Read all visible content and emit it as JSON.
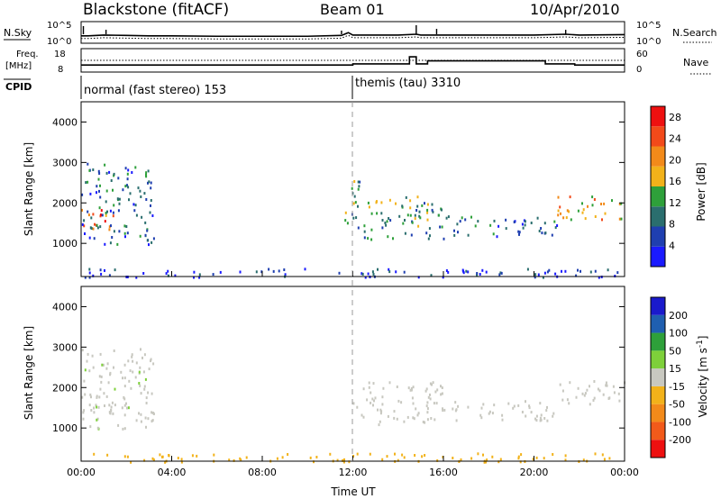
{
  "header": {
    "station": "Blackstone (fitACF)",
    "beam": "Beam 01",
    "date": "10/Apr/2010"
  },
  "noise_panel": {
    "left_label": "N.Sky",
    "right_label": "N.Search",
    "left_ticks": [
      "10^5",
      "10^0"
    ],
    "right_ticks": [
      "10^5",
      "10^0"
    ]
  },
  "freq_panel": {
    "left_label_1": "Freq.",
    "left_label_2": "[MHz]",
    "right_label": "Nave",
    "left_ticks": [
      "18",
      "8"
    ],
    "right_ticks": [
      "60",
      "0"
    ]
  },
  "cpid_panel": {
    "label": "CPID",
    "segments": [
      {
        "text": "normal (fast stereo) 153",
        "start_hour": 0
      },
      {
        "text": "themis (tau) 3310",
        "start_hour": 12
      }
    ]
  },
  "x_axis": {
    "label": "Time UT",
    "ticks": [
      "00:00",
      "04:00",
      "08:00",
      "12:00",
      "16:00",
      "20:00",
      "00:00"
    ]
  },
  "colors": {
    "power_scale": [
      "#1a1aff",
      "#1f3fb0",
      "#2a6e6e",
      "#2ea03a",
      "#f2b21a",
      "#f28a1a",
      "#f24a1a",
      "#ee1010"
    ],
    "velocity_scale": [
      "#ee1010",
      "#f25a1a",
      "#f28a1a",
      "#f2b21a",
      "#c8c8c0",
      "#7ed03a",
      "#2ea03a",
      "#1f5fb0",
      "#1a1acc"
    ]
  },
  "chart_data": [
    {
      "type": "line",
      "title": "",
      "ylabel": "N.Sky",
      "x_range": [
        0,
        24
      ],
      "series": [
        {
          "x": [
            0,
            0.3,
            1,
            2,
            3,
            4,
            6,
            8,
            10,
            11.5,
            11.8,
            12,
            14,
            14.8,
            15,
            16,
            18,
            20,
            21.4,
            22,
            24
          ],
          "values": [
            0.8,
            0.8,
            0.9,
            0.85,
            0.8,
            0.8,
            0.75,
            0.75,
            0.75,
            0.85,
            1.2,
            0.9,
            0.9,
            1.0,
            0.9,
            0.9,
            0.9,
            0.9,
            1.0,
            0.9,
            0.95
          ]
        }
      ]
    },
    {
      "type": "line",
      "title": "",
      "ylabel": "Freq. [MHz]",
      "ylim": [
        8,
        18
      ],
      "x_range": [
        0,
        24
      ],
      "series": [
        {
          "x": [
            0,
            12,
            12,
            14.5,
            14.5,
            14.8,
            14.8,
            15.3,
            15.3,
            20.5,
            20.5,
            21.8,
            21.8,
            24
          ],
          "values": [
            11.0,
            11.0,
            11.5,
            11.5,
            14.5,
            14.5,
            11.5,
            11.5,
            12.8,
            12.8,
            11.5,
            11.5,
            11.0,
            11.0
          ]
        }
      ]
    },
    {
      "type": "heatmap",
      "title": "",
      "xlabel": "Time UT",
      "ylabel": "Slant Range [km]",
      "x_range_hours": [
        0,
        24
      ],
      "ylim": [
        180,
        4500
      ],
      "y_ticks": [
        1000,
        2000,
        3000,
        4000
      ],
      "colorbar": {
        "label": "Power [dB]",
        "ticks": [
          4,
          8,
          12,
          16,
          20,
          24,
          28
        ],
        "range": [
          0,
          30
        ]
      },
      "echo_regions": [
        {
          "t0": 0,
          "t1": 1.5,
          "r0": 1300,
          "r1": 1900,
          "value": 22
        },
        {
          "t0": 0,
          "t1": 3.2,
          "r0": 1000,
          "r1": 3000,
          "value": 8
        },
        {
          "t0": 11.6,
          "t1": 12.3,
          "r0": 1500,
          "r1": 2600,
          "value": 12
        },
        {
          "t0": 12,
          "t1": 16,
          "r0": 1100,
          "r1": 2200,
          "value": 12
        },
        {
          "t0": 16,
          "t1": 21,
          "r0": 1200,
          "r1": 1700,
          "value": 8
        },
        {
          "t0": 21,
          "t1": 24,
          "r0": 1600,
          "r1": 2200,
          "value": 18
        },
        {
          "t0": 0,
          "t1": 24,
          "r0": 180,
          "r1": 400,
          "value": 4
        }
      ]
    },
    {
      "type": "heatmap",
      "title": "",
      "xlabel": "Time UT",
      "ylabel": "Slant Range [km]",
      "x_range_hours": [
        0,
        24
      ],
      "ylim": [
        180,
        4500
      ],
      "y_ticks": [
        1000,
        2000,
        3000,
        4000
      ],
      "colorbar": {
        "label": "Velocity [m s^-1]",
        "ticks": [
          200,
          100,
          50,
          15,
          -15,
          -50,
          -100,
          -200
        ]
      },
      "echo_regions": [
        {
          "t0": 0,
          "t1": 1.5,
          "r0": 1400,
          "r1": 1800,
          "value": 0
        },
        {
          "t0": 0,
          "t1": 3.2,
          "r0": 1000,
          "r1": 3000,
          "value": 10
        },
        {
          "t0": 12,
          "t1": 16,
          "r0": 1100,
          "r1": 2200,
          "value": 0
        },
        {
          "t0": 16,
          "t1": 21,
          "r0": 1200,
          "r1": 1700,
          "value": 5
        },
        {
          "t0": 21,
          "t1": 24,
          "r0": 1600,
          "r1": 2200,
          "value": 0
        },
        {
          "t0": 0,
          "t1": 24,
          "r0": 180,
          "r1": 400,
          "value": -30
        }
      ]
    }
  ]
}
